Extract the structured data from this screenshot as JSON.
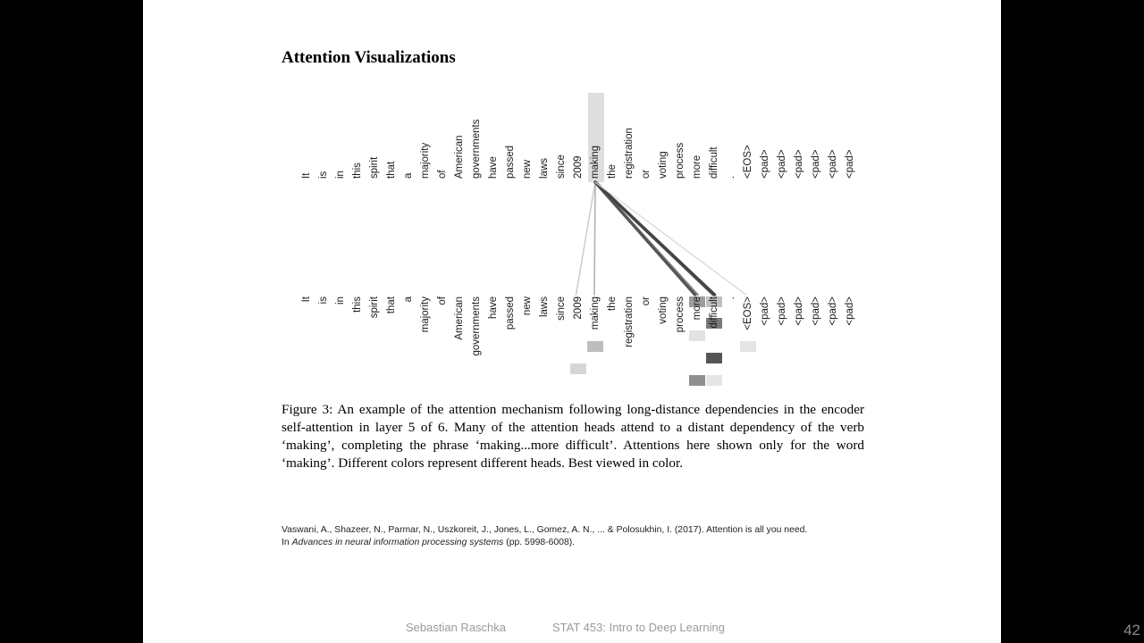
{
  "slide": {
    "title": "Attention Visualizations",
    "tokens": [
      "It",
      "is",
      "in",
      "this",
      "spirit",
      "that",
      "a",
      "majority",
      "of",
      "American",
      "governments",
      "have",
      "passed",
      "new",
      "laws",
      "since",
      "2009",
      "making",
      "the",
      "registration",
      "or",
      "voting",
      "process",
      "more",
      "difficult",
      ".",
      "<EOS>",
      "<pad>",
      "<pad>",
      "<pad>",
      "<pad>",
      "<pad>",
      "<pad>"
    ],
    "query_token": "making",
    "attention_links": [
      {
        "to": "2009",
        "color": "#c8c8c8",
        "weight": 0.15
      },
      {
        "to": "making",
        "color": "#b4b4b4",
        "weight": 0.25
      },
      {
        "to": "more",
        "color": "#8a8a8a",
        "weight": 0.55
      },
      {
        "to": "more",
        "color": "#555555",
        "weight": 0.9
      },
      {
        "to": "difficult",
        "color": "#6f6f6f",
        "weight": 0.8
      },
      {
        "to": "difficult",
        "color": "#444444",
        "weight": 0.95
      },
      {
        "to": "<EOS>",
        "color": "#d8d8d8",
        "weight": 0.1
      }
    ],
    "caption": {
      "lines": [
        "Figure 3: An example of the attention mechanism following long-distance dependencies in the",
        "encoder self-attention in layer 5 of 6. Many of the attention heads attend to a distant dependency of",
        "the verb ‘making’, completing the phrase ‘making...more difficult’. Attentions here shown only for",
        "the word ‘making’. Different colors represent different heads. Best viewed in color."
      ]
    },
    "reference": {
      "line1": "Vaswani, A., Shazeer, N., Parmar, N., Uszkoreit, J., Jones, L., Gomez, A. N., ... & Polosukhin, I. (2017). Attention is all you need.",
      "line2_prefix": "In ",
      "line2_italic": "Advances in neural information processing systems",
      "line2_suffix": " (pp. 5998-6008)."
    },
    "footer": {
      "author": "Sebastian Raschka",
      "course": "STAT 453: Intro to Deep Learning",
      "page_number": "42"
    }
  }
}
